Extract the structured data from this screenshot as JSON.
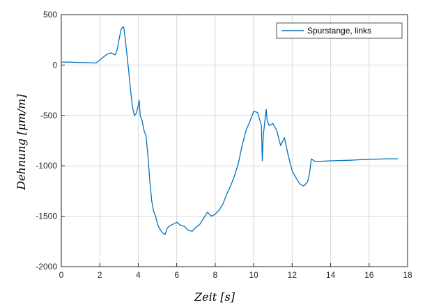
{
  "chart_data": {
    "type": "line",
    "title": "",
    "xlabel": "Zeit [s]",
    "ylabel": "Dehnung [μm/m]",
    "xlim": [
      0,
      18
    ],
    "ylim": [
      -2000,
      500
    ],
    "xticks": [
      "0",
      "2",
      "4",
      "6",
      "8",
      "10",
      "12",
      "14",
      "16",
      "18"
    ],
    "yticks": [
      "500",
      "0",
      "-500",
      "-1000",
      "-1500",
      "-2000"
    ],
    "grid": true,
    "legend_position": "top-right",
    "colors": {
      "series": "#0072BD",
      "grid": "#d9d9d9",
      "axis": "#262626"
    },
    "series": [
      {
        "name": "Spurstange, links",
        "x": [
          0,
          0.5,
          1.0,
          1.5,
          1.8,
          2.0,
          2.2,
          2.4,
          2.6,
          2.8,
          2.9,
          3.0,
          3.1,
          3.2,
          3.25,
          3.3,
          3.4,
          3.5,
          3.6,
          3.7,
          3.8,
          3.9,
          4.0,
          4.05,
          4.1,
          4.2,
          4.3,
          4.4,
          4.5,
          4.6,
          4.7,
          4.8,
          4.9,
          5.0,
          5.1,
          5.2,
          5.3,
          5.4,
          5.5,
          5.6,
          5.8,
          6.0,
          6.2,
          6.4,
          6.6,
          6.8,
          7.0,
          7.2,
          7.4,
          7.6,
          7.8,
          8.0,
          8.2,
          8.4,
          8.6,
          8.8,
          9.0,
          9.2,
          9.4,
          9.6,
          9.8,
          10.0,
          10.2,
          10.4,
          10.45,
          10.5,
          10.6,
          10.65,
          10.7,
          10.8,
          11.0,
          11.2,
          11.4,
          11.6,
          11.8,
          12.0,
          12.2,
          12.4,
          12.6,
          12.8,
          12.9,
          13.0,
          13.2,
          13.5,
          14.0,
          15.0,
          16.0,
          17.0,
          17.5
        ],
        "values": [
          30,
          28,
          25,
          22,
          20,
          50,
          80,
          110,
          120,
          100,
          150,
          250,
          350,
          380,
          370,
          300,
          120,
          -50,
          -250,
          -420,
          -500,
          -480,
          -400,
          -350,
          -500,
          -550,
          -650,
          -700,
          -900,
          -1150,
          -1350,
          -1450,
          -1500,
          -1580,
          -1620,
          -1650,
          -1670,
          -1680,
          -1620,
          -1600,
          -1580,
          -1560,
          -1590,
          -1600,
          -1640,
          -1650,
          -1610,
          -1580,
          -1520,
          -1460,
          -1500,
          -1480,
          -1440,
          -1380,
          -1280,
          -1200,
          -1100,
          -980,
          -800,
          -650,
          -560,
          -460,
          -470,
          -600,
          -950,
          -700,
          -520,
          -440,
          -550,
          -600,
          -580,
          -650,
          -800,
          -720,
          -900,
          -1050,
          -1120,
          -1180,
          -1200,
          -1160,
          -1080,
          -930,
          -960,
          -955,
          -950,
          -945,
          -935,
          -930,
          -930
        ]
      }
    ]
  }
}
